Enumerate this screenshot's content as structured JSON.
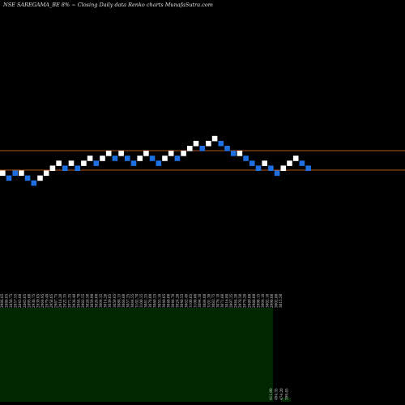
{
  "header": {
    "title": "NSE SAREGAMA_BE 8% ~  Closing Daily data  Renko  charts MunafaSutra.com"
  },
  "colors": {
    "background": "#000000",
    "up_brick": "#ffffff",
    "down_brick": "#1e6fe0",
    "reference_line": "#b4541c",
    "volume_panel": "#002800",
    "tick_text": "#d8d8d8"
  },
  "chart_data": {
    "type": "renko",
    "brick_direction": [
      1,
      -1,
      -1,
      1,
      -1,
      -1,
      1,
      1,
      1,
      1,
      -1,
      1,
      -1,
      1,
      1,
      -1,
      1,
      1,
      -1,
      1,
      -1,
      -1,
      1,
      1,
      -1,
      -1,
      1,
      1,
      -1,
      1,
      1,
      1,
      -1,
      1,
      1,
      -1,
      -1,
      -1,
      1,
      -1,
      -1,
      -1,
      1,
      -1,
      -1,
      1,
      1,
      1,
      -1,
      -1
    ],
    "brick_level": [
      4,
      3,
      4,
      4,
      3,
      2,
      3,
      4,
      5,
      6,
      5,
      6,
      5,
      6,
      7,
      6,
      7,
      8,
      7,
      8,
      7,
      6,
      7,
      8,
      7,
      6,
      7,
      8,
      7,
      8,
      9,
      10,
      9,
      10,
      11,
      10,
      9,
      8,
      8,
      7,
      6,
      5,
      6,
      5,
      4,
      5,
      6,
      7,
      6,
      5
    ],
    "reference_lines": [
      "upper",
      "lower"
    ],
    "volume_area": {
      "end_brick": 42
    },
    "tick_labels": [
      "2986.85",
      "2886.85",
      "2850.75",
      "2857.55",
      "2845.60",
      "2865.05",
      "2895.60",
      "2930.75",
      "2939.05",
      "2964.95",
      "2979.40",
      "2958.05",
      "2987.75",
      "2918.20",
      "2922.35",
      "2971.35",
      "2936.40",
      "2944.70",
      "2982.55",
      "3026.50",
      "3059.90",
      "3026.00",
      "3004.35",
      "3014.20",
      "3039.05",
      "3059.65",
      "3080.15",
      "3066.60",
      "3057.25",
      "3084.55",
      "3102.70",
      "3100.35",
      "3081.25",
      "3070.00",
      "3060.25",
      "3055.10",
      "3040.05",
      "3040.00",
      "3046.70",
      "3024.20",
      "3040.55",
      "3062.40",
      "3100.05",
      "3100.60",
      "3094.10",
      "3084.00",
      "3101.30",
      "3083.75",
      "3076.10",
      "3071.60",
      "3016.80",
      "2997.35",
      "2984.20",
      "2978.50",
      "2979.20",
      "2980.00",
      "2988.00",
      "2998.15",
      "3004.10",
      "3002.10",
      "2990.00",
      "3002.80",
      "3015.50"
    ],
    "bottom_labels": [
      "411.00",
      "494.35",
      "474.20",
      "399.85"
    ]
  }
}
